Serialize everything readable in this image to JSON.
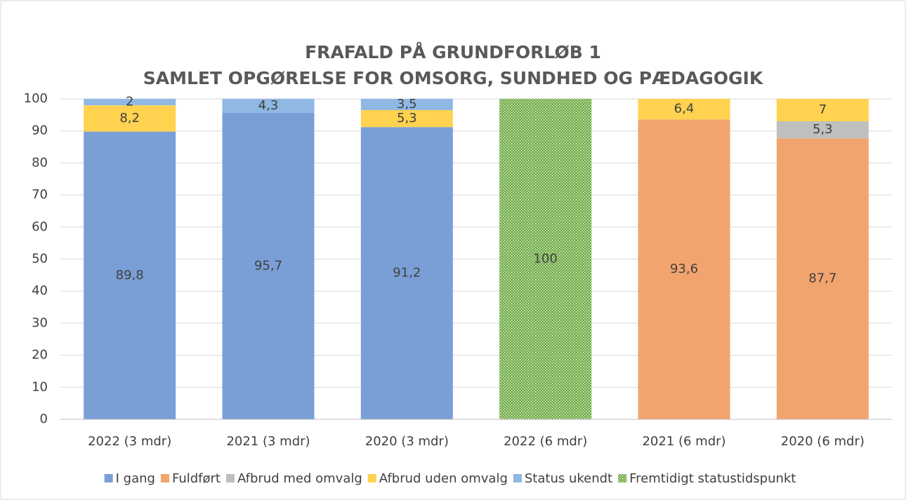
{
  "chart_data": {
    "type": "stacked_bar",
    "title": "FRAFALD PÅ GRUNDFORLØB 1",
    "subtitle": "SAMLET OPGØRELSE FOR OMSORG, SUNDHED OG PÆDAGOGIK",
    "categories": [
      "2022 (3 mdr)",
      "2021 (3 mdr)",
      "2020 (3 mdr)",
      "2022 (6 mdr)",
      "2021 (6 mdr)",
      "2020 (6 mdr)"
    ],
    "series": [
      {
        "name": "I gang",
        "color": "#7a9fd6",
        "values": [
          89.8,
          95.7,
          91.2,
          null,
          null,
          null
        ],
        "value_labels": [
          "89,8",
          "95,7",
          "91,2",
          null,
          null,
          null
        ]
      },
      {
        "name": "Fuldført",
        "color": "#f2a46e",
        "values": [
          null,
          null,
          null,
          null,
          93.6,
          87.7
        ],
        "value_labels": [
          null,
          null,
          null,
          null,
          "93,6",
          "87,7"
        ]
      },
      {
        "name": "Afbrud med omvalg",
        "color": "#bfbfbf",
        "values": [
          null,
          null,
          null,
          null,
          null,
          5.3
        ],
        "value_labels": [
          null,
          null,
          null,
          null,
          null,
          "5,3"
        ]
      },
      {
        "name": "Afbrud uden omvalg",
        "color": "#ffd34f",
        "values": [
          8.2,
          null,
          5.3,
          null,
          6.4,
          7
        ],
        "value_labels": [
          "8,2",
          null,
          "5,3",
          null,
          "6,4",
          "7"
        ]
      },
      {
        "name": "Status ukendt",
        "color": "#8fb8e3",
        "values": [
          2,
          4.3,
          3.5,
          null,
          null,
          null
        ],
        "value_labels": [
          "2",
          "4,3",
          "3,5",
          null,
          null,
          null
        ]
      },
      {
        "name": "Fremtidigt statustidspunkt",
        "color": "#70ad47",
        "pattern": "dots",
        "values": [
          null,
          null,
          null,
          100,
          null,
          null
        ],
        "value_labels": [
          null,
          null,
          null,
          "100",
          null,
          null
        ]
      }
    ],
    "ylim": [
      0,
      100
    ],
    "yticks": [
      0,
      10,
      20,
      30,
      40,
      50,
      60,
      70,
      80,
      90,
      100
    ],
    "grid": true,
    "legend": "bottom"
  }
}
